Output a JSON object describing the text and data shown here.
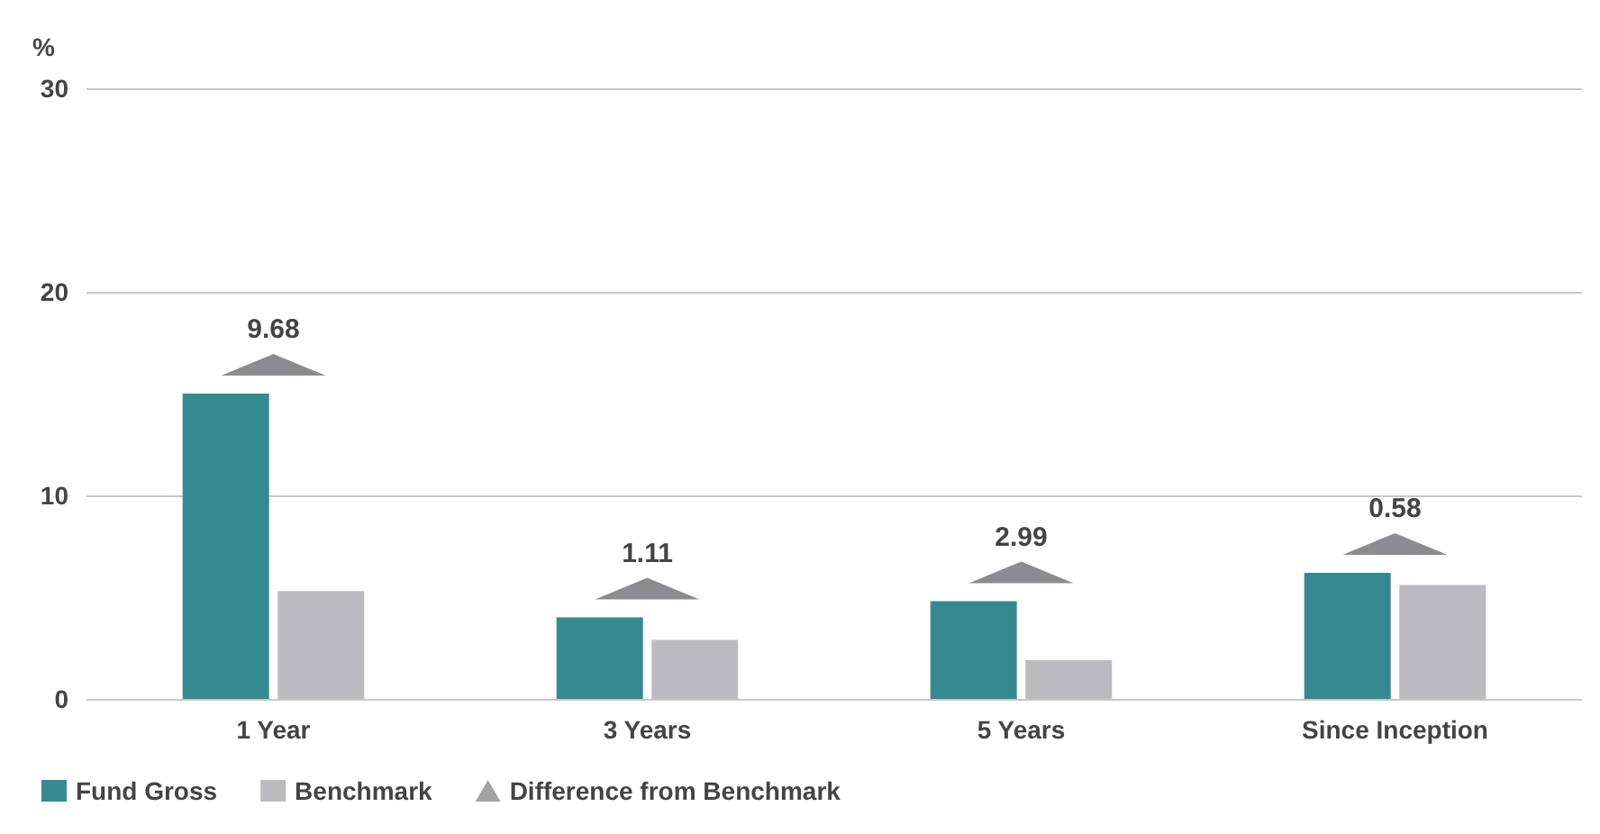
{
  "chart_data": {
    "type": "bar",
    "ylabel": "%",
    "categories": [
      "1 Year",
      "3 Years",
      "5 Years",
      "Since Inception"
    ],
    "series": [
      {
        "name": "Fund Gross",
        "color": "#358a91",
        "values": [
          15.0,
          4.0,
          4.8,
          6.2
        ]
      },
      {
        "name": "Benchmark",
        "color": "#bcbcc0",
        "values": [
          5.3,
          2.9,
          1.9,
          5.6
        ]
      },
      {
        "name": "Difference from Benchmark",
        "type": "scatter",
        "marker": "triangle",
        "color": "#8c8c90",
        "values": [
          null,
          null,
          null,
          null
        ]
      }
    ],
    "annotations": [
      {
        "text": "9.68",
        "x": "1 Year",
        "y": 15.0
      },
      {
        "text": "1.11",
        "x": "3 Years",
        "y": 4.0
      },
      {
        "text": "2.99",
        "x": "5 Years",
        "y": 4.8
      },
      {
        "text": "0.58",
        "x": "Since Inception",
        "y": 6.2
      }
    ],
    "ylim": [
      0,
      30
    ],
    "yticks": [
      0,
      10,
      20,
      30
    ],
    "grid": "y",
    "legend": "bottom left"
  }
}
